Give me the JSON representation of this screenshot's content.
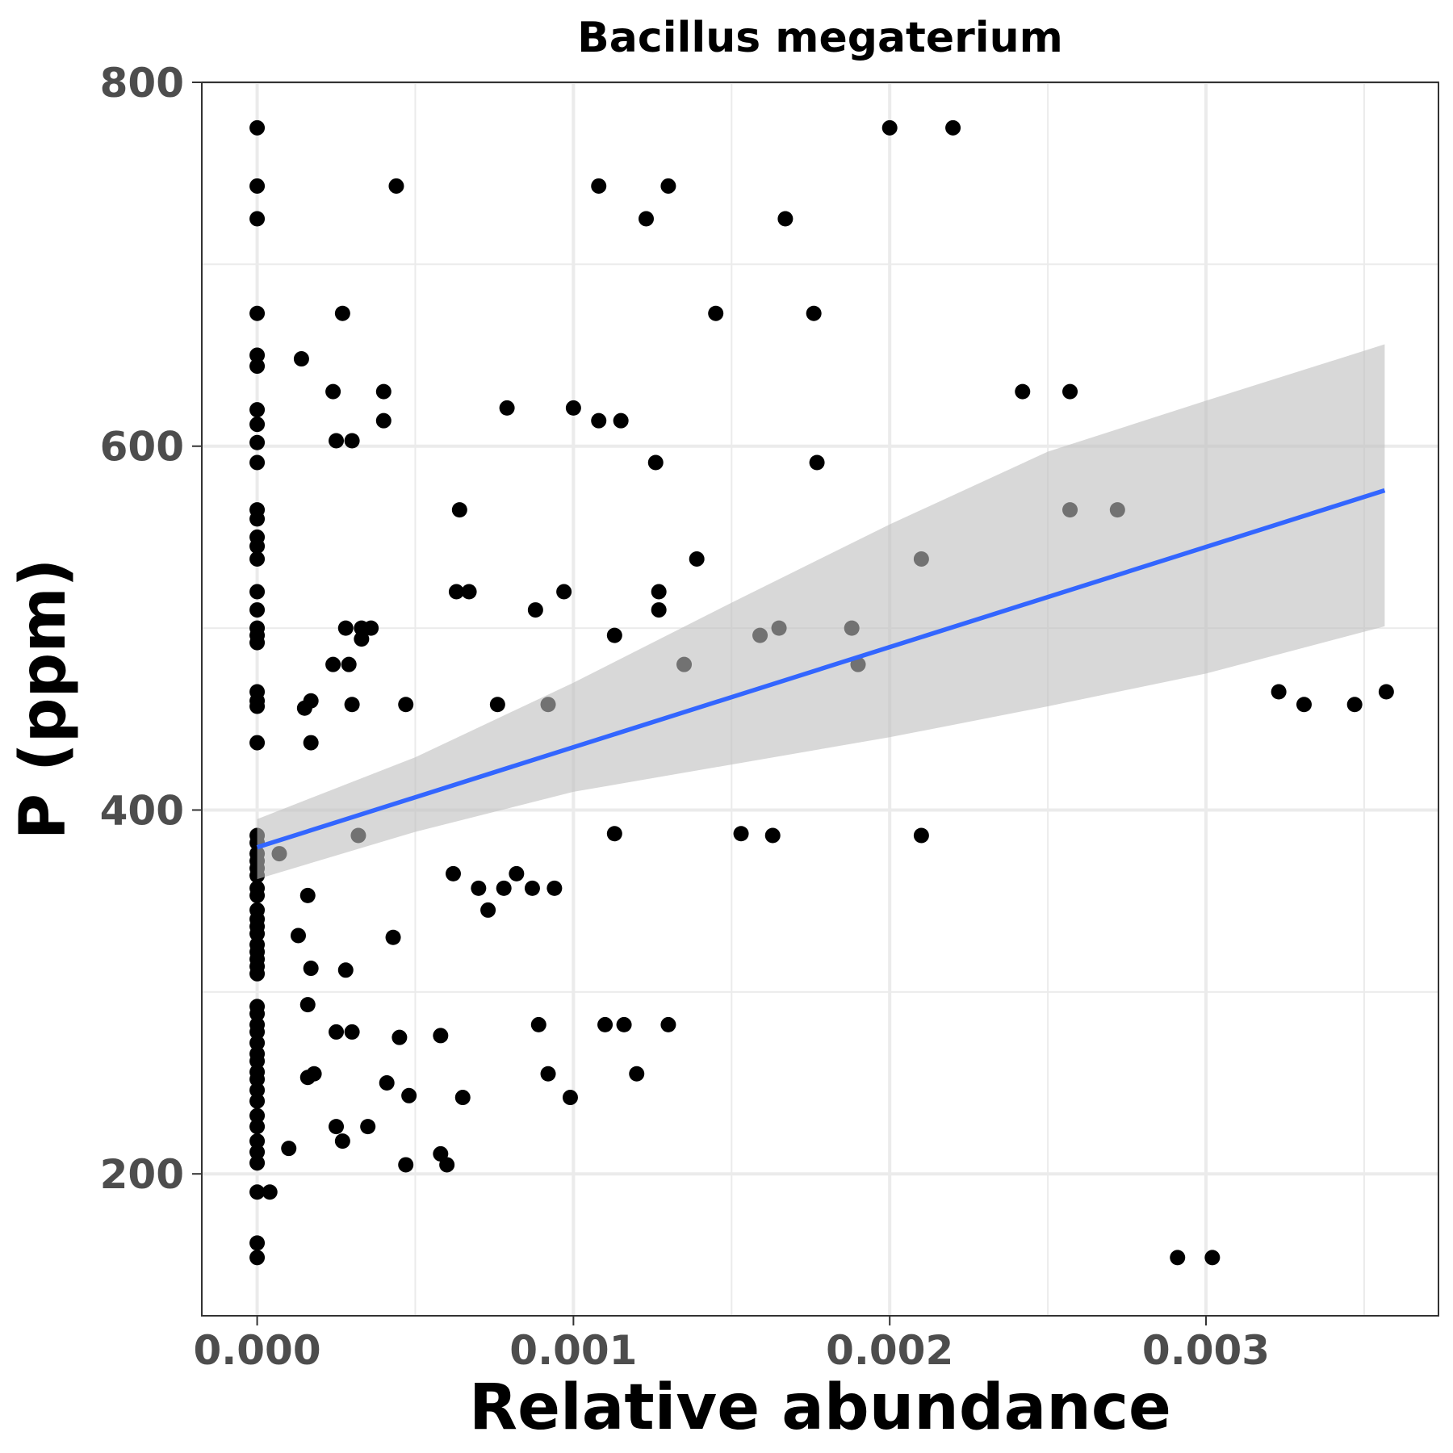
{
  "chart_data": {
    "type": "scatter",
    "title": "Bacillus megaterium",
    "xlabel": "Relative abundance",
    "ylabel": "P (ppm)",
    "xlim": [
      -0.000175,
      0.003735
    ],
    "ylim": [
      122,
      800
    ],
    "x_ticks": [
      0.0,
      0.001,
      0.002,
      0.003
    ],
    "x_tick_labels": [
      "0.000",
      "0.001",
      "0.002",
      "0.003"
    ],
    "y_ticks": [
      200,
      400,
      600,
      800
    ],
    "y_tick_labels": [
      "200",
      "400",
      "600",
      "800"
    ],
    "grid": true,
    "point_color": "#000000",
    "trend_color": "#3366FF",
    "ribbon_color": "#BEBEBE",
    "points": [
      [
        0,
        775
      ],
      [
        0,
        743
      ],
      [
        0,
        725
      ],
      [
        0,
        673
      ],
      [
        0,
        650
      ],
      [
        0,
        644
      ],
      [
        0,
        620
      ],
      [
        0,
        612
      ],
      [
        0,
        602
      ],
      [
        0,
        591
      ],
      [
        0,
        565
      ],
      [
        0,
        560
      ],
      [
        0,
        550
      ],
      [
        0,
        545
      ],
      [
        0,
        538
      ],
      [
        0,
        520
      ],
      [
        0,
        510
      ],
      [
        0,
        500
      ],
      [
        0,
        496
      ],
      [
        0,
        492
      ],
      [
        0,
        465
      ],
      [
        0,
        460
      ],
      [
        0,
        457
      ],
      [
        0,
        437
      ],
      [
        0,
        386
      ],
      [
        0,
        382
      ],
      [
        0,
        376
      ],
      [
        0,
        372
      ],
      [
        0,
        368
      ],
      [
        0,
        364
      ],
      [
        0,
        357
      ],
      [
        0,
        353
      ],
      [
        0,
        345
      ],
      [
        0,
        340
      ],
      [
        0,
        336
      ],
      [
        0,
        332
      ],
      [
        0,
        326
      ],
      [
        0,
        322
      ],
      [
        0,
        318
      ],
      [
        0,
        314
      ],
      [
        0,
        310
      ],
      [
        0,
        292
      ],
      [
        0,
        288
      ],
      [
        0,
        282
      ],
      [
        0,
        278
      ],
      [
        0,
        272
      ],
      [
        0,
        266
      ],
      [
        0,
        262
      ],
      [
        0,
        256
      ],
      [
        0,
        252
      ],
      [
        0,
        246
      ],
      [
        0,
        240
      ],
      [
        0,
        232
      ],
      [
        0,
        226
      ],
      [
        0,
        218
      ],
      [
        0,
        212
      ],
      [
        0,
        206
      ],
      [
        0,
        190
      ],
      [
        0,
        162
      ],
      [
        0,
        154
      ],
      [
        4e-05,
        190
      ],
      [
        7e-05,
        376
      ],
      [
        0.0001,
        214
      ],
      [
        0.00013,
        331
      ],
      [
        0.00014,
        648
      ],
      [
        0.00015,
        456
      ],
      [
        0.00016,
        293
      ],
      [
        0.00016,
        353
      ],
      [
        0.00016,
        253
      ],
      [
        0.00017,
        460
      ],
      [
        0.00017,
        437
      ],
      [
        0.00017,
        313
      ],
      [
        0.00018,
        255
      ],
      [
        0.00024,
        630
      ],
      [
        0.00024,
        480
      ],
      [
        0.00025,
        278
      ],
      [
        0.00025,
        226
      ],
      [
        0.00025,
        603
      ],
      [
        0.00027,
        218
      ],
      [
        0.00027,
        673
      ],
      [
        0.00028,
        312
      ],
      [
        0.00028,
        500
      ],
      [
        0.00029,
        480
      ],
      [
        0.0003,
        458
      ],
      [
        0.0003,
        278
      ],
      [
        0.0003,
        603
      ],
      [
        0.00032,
        386
      ],
      [
        0.00033,
        494
      ],
      [
        0.00033,
        500
      ],
      [
        0.00035,
        226
      ],
      [
        0.00036,
        500
      ],
      [
        0.0004,
        614
      ],
      [
        0.0004,
        630
      ],
      [
        0.00041,
        250
      ],
      [
        0.00043,
        330
      ],
      [
        0.00044,
        743
      ],
      [
        0.00045,
        275
      ],
      [
        0.00047,
        458
      ],
      [
        0.00047,
        205
      ],
      [
        0.00048,
        243
      ],
      [
        0.00058,
        211
      ],
      [
        0.00058,
        276
      ],
      [
        0.0006,
        205
      ],
      [
        0.00062,
        365
      ],
      [
        0.00063,
        520
      ],
      [
        0.00064,
        565
      ],
      [
        0.00065,
        242
      ],
      [
        0.00067,
        520
      ],
      [
        0.0007,
        357
      ],
      [
        0.00073,
        345
      ],
      [
        0.00076,
        458
      ],
      [
        0.00078,
        357
      ],
      [
        0.00079,
        621
      ],
      [
        0.00082,
        365
      ],
      [
        0.00087,
        357
      ],
      [
        0.00088,
        510
      ],
      [
        0.00089,
        282
      ],
      [
        0.00092,
        458
      ],
      [
        0.00092,
        255
      ],
      [
        0.00094,
        357
      ],
      [
        0.00097,
        520
      ],
      [
        0.00099,
        242
      ],
      [
        0.001,
        621
      ],
      [
        0.00108,
        614
      ],
      [
        0.00108,
        743
      ],
      [
        0.0011,
        282
      ],
      [
        0.00113,
        496
      ],
      [
        0.00113,
        387
      ],
      [
        0.00115,
        614
      ],
      [
        0.00116,
        282
      ],
      [
        0.0012,
        255
      ],
      [
        0.00123,
        725
      ],
      [
        0.00126,
        591
      ],
      [
        0.00127,
        520
      ],
      [
        0.00127,
        510
      ],
      [
        0.0013,
        743
      ],
      [
        0.0013,
        282
      ],
      [
        0.00135,
        480
      ],
      [
        0.00139,
        538
      ],
      [
        0.00145,
        673
      ],
      [
        0.00153,
        387
      ],
      [
        0.00159,
        496
      ],
      [
        0.00163,
        386
      ],
      [
        0.00165,
        500
      ],
      [
        0.00167,
        725
      ],
      [
        0.00176,
        673
      ],
      [
        0.00177,
        591
      ],
      [
        0.00188,
        500
      ],
      [
        0.0019,
        480
      ],
      [
        0.002,
        775
      ],
      [
        0.0021,
        538
      ],
      [
        0.0021,
        386
      ],
      [
        0.0022,
        775
      ],
      [
        0.00242,
        630
      ],
      [
        0.00257,
        630
      ],
      [
        0.00257,
        565
      ],
      [
        0.00272,
        565
      ],
      [
        0.00291,
        154
      ],
      [
        0.00302,
        154
      ],
      [
        0.00323,
        465
      ],
      [
        0.00331,
        458
      ],
      [
        0.00347,
        458
      ],
      [
        0.00357,
        465
      ]
    ],
    "trend": {
      "x": [
        0.0,
        0.003565
      ],
      "y": [
        379.5,
        575.7
      ]
    },
    "confidence_band": {
      "x": [
        0.0,
        0.0005,
        0.001,
        0.0015,
        0.002,
        0.0025,
        0.003,
        0.003565
      ],
      "lower": [
        362.0,
        388.0,
        410.0,
        425.0,
        440.0,
        457.0,
        475.0,
        501.0
      ],
      "upper": [
        395.0,
        429.0,
        470.0,
        514.0,
        557.0,
        597.0,
        625.0,
        656.0
      ]
    }
  }
}
